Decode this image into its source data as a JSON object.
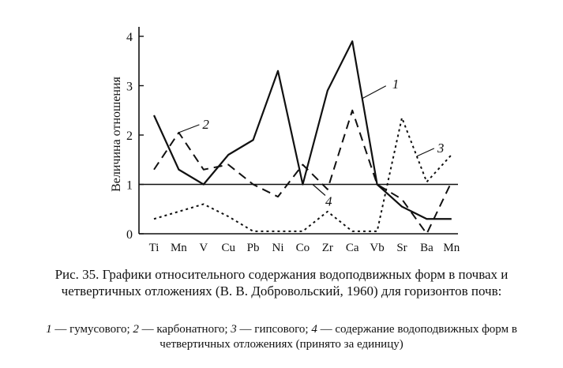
{
  "chart_data": {
    "type": "line",
    "ylabel": "Величина отношения",
    "xlabel": "",
    "categories": [
      "Ti",
      "Mn",
      "V",
      "Cu",
      "Pb",
      "Ni",
      "Co",
      "Zr",
      "Ca",
      "Vb",
      "Sr",
      "Ba",
      "Mn"
    ],
    "ylim": [
      0,
      4.2
    ],
    "yticks": [
      0,
      1,
      2,
      3,
      4
    ],
    "reference_line": 1,
    "series": [
      {
        "name": "1",
        "style": "solid",
        "values": [
          2.4,
          1.3,
          1.0,
          1.6,
          1.9,
          3.3,
          1.0,
          2.9,
          3.9,
          1.0,
          0.55,
          0.3,
          0.3
        ]
      },
      {
        "name": "2",
        "style": "dashed",
        "values": [
          1.3,
          2.05,
          1.3,
          1.4,
          1.0,
          0.75,
          1.4,
          0.9,
          2.5,
          1.0,
          0.7,
          0.0,
          1.05
        ]
      },
      {
        "name": "3",
        "style": "dotted",
        "values": [
          0.3,
          0.45,
          0.6,
          0.35,
          0.05,
          0.05,
          0.05,
          0.45,
          0.05,
          0.05,
          2.35,
          1.05,
          1.6
        ]
      }
    ],
    "series_labels": [
      {
        "text": "1",
        "series": 0,
        "anchor_index": 8.4
      },
      {
        "text": "2",
        "series": 1,
        "anchor_index": 1.0
      },
      {
        "text": "3",
        "series": 2,
        "anchor_index": 10.6
      },
      {
        "text": "4",
        "series": -1,
        "anchor_index": 6.4
      }
    ],
    "grid": false,
    "legend": "none"
  },
  "caption": {
    "title": "Рис. 35. Графики относительного содержания водоподвижных форм в почвах и четвертичных отложениях (В. В. Добровольский, 1960) для горизонтов почв:",
    "legend": [
      {
        "num": "1",
        "text": " — гумусового; "
      },
      {
        "num": "2",
        "text": " — карбонатного; "
      },
      {
        "num": "3",
        "text": " — гипсового; "
      },
      {
        "num": "4",
        "text": " — содержание водоподвижных форм в четвертичных отложениях (принято за единицу)"
      }
    ]
  }
}
